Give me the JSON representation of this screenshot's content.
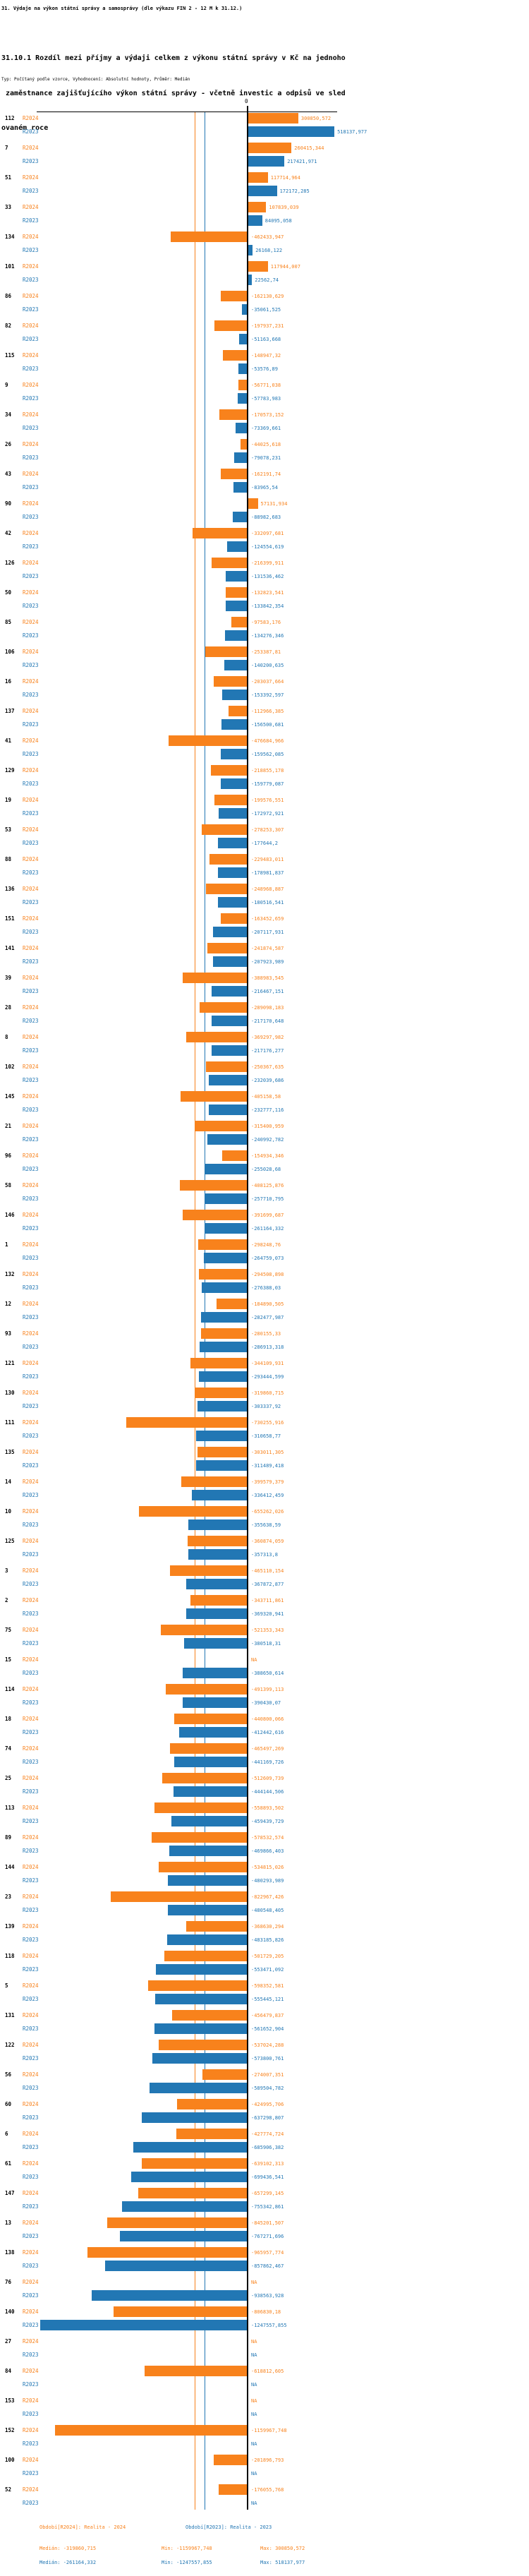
{
  "header": {
    "title": "31. Výdaje na výkon státní správy a samosprávy (dle výkazu FIN 2 - 12 M k 31.12.)",
    "subtitle_lines": [
      "31.10.1 Rozdíl mezi příjmy a výdaji celkem z výkonu státní správy v Kč na jednoho",
      " zaměstnance zajišťujícího výkon státní správy - včetně investic a odpisů ve sled",
      "ovaném roce"
    ],
    "meta": "Typ: Počítaný podle vzorce, Vyhodnocení: Absolutní hodnoty, Průměr: Medián"
  },
  "chart_data": {
    "type": "bar",
    "orientation": "horizontal-diverging",
    "zero_label": "0",
    "na_label": "NA",
    "value_axis": {
      "min": -1270000,
      "max": 540000
    },
    "series": [
      {
        "key": "r2024",
        "label": "R2024",
        "color": "#f8821c",
        "period_text": "Období[R2024]: Realita - 2024",
        "median": "-319860,715",
        "median_text": "Medián: -319860,715",
        "min_text": "Min: -1159967,748",
        "max_text": "Max: 300850,572"
      },
      {
        "key": "r2023",
        "label": "R2023",
        "color": "#2277b4",
        "period_text": "Období[R2023]: Realita - 2023",
        "median": "-261164,332",
        "median_text": "Medián: -261164,332",
        "min_text": "Min: -1247557,855",
        "max_text": "Max: 518137,977"
      }
    ],
    "groups": [
      {
        "id": "112",
        "r2024": "300850,572",
        "r2023": "518137,977"
      },
      {
        "id": "7",
        "r2024": "260415,344",
        "r2023": "217421,971"
      },
      {
        "id": "51",
        "r2024": "117714,964",
        "r2023": "172172,285"
      },
      {
        "id": "33",
        "r2024": "107839,039",
        "r2023": "84095,058"
      },
      {
        "id": "134",
        "r2024": "-462433,947",
        "r2023": "26168,122"
      },
      {
        "id": "101",
        "r2024": "117944,007",
        "r2023": "22562,74"
      },
      {
        "id": "86",
        "r2024": "-162130,629",
        "r2023": "-35061,525"
      },
      {
        "id": "82",
        "r2024": "-197937,231",
        "r2023": "-51163,668"
      },
      {
        "id": "115",
        "r2024": "-148947,32",
        "r2023": "-53576,89"
      },
      {
        "id": "9",
        "r2024": "-56771,038",
        "r2023": "-57783,983"
      },
      {
        "id": "34",
        "r2024": "-170573,152",
        "r2023": "-73369,661"
      },
      {
        "id": "26",
        "r2024": "-44025,618",
        "r2023": "-79078,231"
      },
      {
        "id": "43",
        "r2024": "-162191,74",
        "r2023": "-83965,54"
      },
      {
        "id": "90",
        "r2024": "57131,934",
        "r2023": "-88982,683"
      },
      {
        "id": "42",
        "r2024": "-332097,681",
        "r2023": "-124554,619"
      },
      {
        "id": "126",
        "r2024": "-216399,911",
        "r2023": "-131536,462"
      },
      {
        "id": "50",
        "r2024": "-132823,541",
        "r2023": "-133842,354"
      },
      {
        "id": "85",
        "r2024": "-97583,176",
        "r2023": "-134276,346"
      },
      {
        "id": "106",
        "r2024": "-253387,81",
        "r2023": "-140200,635"
      },
      {
        "id": "16",
        "r2024": "-203037,664",
        "r2023": "-153392,597"
      },
      {
        "id": "137",
        "r2024": "-112966,385",
        "r2023": "-156500,681"
      },
      {
        "id": "41",
        "r2024": "-476684,966",
        "r2023": "-159562,085"
      },
      {
        "id": "129",
        "r2024": "-218855,178",
        "r2023": "-159779,087"
      },
      {
        "id": "19",
        "r2024": "-199576,551",
        "r2023": "-172972,921"
      },
      {
        "id": "53",
        "r2024": "-278253,307",
        "r2023": "-177644,2"
      },
      {
        "id": "88",
        "r2024": "-229483,011",
        "r2023": "-178981,837"
      },
      {
        "id": "136",
        "r2024": "-248968,887",
        "r2023": "-180516,541"
      },
      {
        "id": "151",
        "r2024": "-163452,659",
        "r2023": "-207117,931"
      },
      {
        "id": "141",
        "r2024": "-241874,587",
        "r2023": "-207923,989"
      },
      {
        "id": "39",
        "r2024": "-388983,545",
        "r2023": "-216467,151"
      },
      {
        "id": "28",
        "r2024": "-289098,183",
        "r2023": "-217170,648"
      },
      {
        "id": "8",
        "r2024": "-369297,982",
        "r2023": "-217176,277"
      },
      {
        "id": "102",
        "r2024": "-250367,635",
        "r2023": "-232039,686"
      },
      {
        "id": "145",
        "r2024": "-405158,58",
        "r2023": "-232777,116"
      },
      {
        "id": "21",
        "r2024": "-315400,959",
        "r2023": "-240992,782"
      },
      {
        "id": "96",
        "r2024": "-154934,346",
        "r2023": "-255028,68"
      },
      {
        "id": "58",
        "r2024": "-408125,876",
        "r2023": "-257710,795"
      },
      {
        "id": "146",
        "r2024": "-391699,687",
        "r2023": "-261164,332"
      },
      {
        "id": "1",
        "r2024": "-298248,76",
        "r2023": "-264759,073"
      },
      {
        "id": "132",
        "r2024": "-294508,898",
        "r2023": "-276388,03"
      },
      {
        "id": "12",
        "r2024": "-184890,505",
        "r2023": "-282477,987"
      },
      {
        "id": "93",
        "r2024": "-280155,33",
        "r2023": "-286913,318"
      },
      {
        "id": "121",
        "r2024": "-344109,931",
        "r2023": "-293444,599"
      },
      {
        "id": "130",
        "r2024": "-319860,715",
        "r2023": "-303337,92"
      },
      {
        "id": "111",
        "r2024": "-730255,916",
        "r2023": "-310658,77"
      },
      {
        "id": "135",
        "r2024": "-303011,305",
        "r2023": "-311489,418"
      },
      {
        "id": "14",
        "r2024": "-399579,379",
        "r2023": "-336412,459"
      },
      {
        "id": "10",
        "r2024": "-655262,026",
        "r2023": "-355638,59"
      },
      {
        "id": "125",
        "r2024": "-360874,059",
        "r2023": "-357313,8"
      },
      {
        "id": "3",
        "r2024": "-465110,154",
        "r2023": "-367872,877"
      },
      {
        "id": "2",
        "r2024": "-343711,861",
        "r2023": "-369320,941"
      },
      {
        "id": "75",
        "r2024": "-521353,343",
        "r2023": "-380518,31"
      },
      {
        "id": "15",
        "r2024": "NA",
        "r2023": "-388650,614"
      },
      {
        "id": "114",
        "r2024": "-491399,113",
        "r2023": "-390430,07"
      },
      {
        "id": "18",
        "r2024": "-440800,066",
        "r2023": "-412442,616"
      },
      {
        "id": "74",
        "r2024": "-465497,269",
        "r2023": "-441169,726"
      },
      {
        "id": "25",
        "r2024": "-512609,739",
        "r2023": "-444144,506"
      },
      {
        "id": "113",
        "r2024": "-558893,502",
        "r2023": "-459439,729"
      },
      {
        "id": "89",
        "r2024": "-578532,574",
        "r2023": "-469866,403"
      },
      {
        "id": "144",
        "r2024": "-534815,026",
        "r2023": "-480293,989"
      },
      {
        "id": "23",
        "r2024": "-822967,426",
        "r2023": "-480548,405"
      },
      {
        "id": "139",
        "r2024": "-368630,294",
        "r2023": "-483185,826"
      },
      {
        "id": "118",
        "r2024": "-501729,205",
        "r2023": "-553471,092"
      },
      {
        "id": "5",
        "r2024": "-598352,581",
        "r2023": "-555445,121"
      },
      {
        "id": "131",
        "r2024": "-456479,837",
        "r2023": "-561652,904"
      },
      {
        "id": "122",
        "r2024": "-537024,288",
        "r2023": "-573800,761"
      },
      {
        "id": "56",
        "r2024": "-274007,351",
        "r2023": "-589504,782"
      },
      {
        "id": "60",
        "r2024": "-424995,706",
        "r2023": "-637298,807"
      },
      {
        "id": "6",
        "r2024": "-427774,724",
        "r2023": "-685906,382"
      },
      {
        "id": "61",
        "r2024": "-639102,313",
        "r2023": "-699436,541"
      },
      {
        "id": "147",
        "r2024": "-657299,145",
        "r2023": "-755342,861"
      },
      {
        "id": "13",
        "r2024": "-845201,507",
        "r2023": "-767271,696"
      },
      {
        "id": "138",
        "r2024": "-965957,774",
        "r2023": "-857862,467"
      },
      {
        "id": "76",
        "r2024": "NA",
        "r2023": "-938563,928"
      },
      {
        "id": "140",
        "r2024": "-806830,18",
        "r2023": "-1247557,855"
      },
      {
        "id": "27",
        "r2024": "NA",
        "r2023": "NA"
      },
      {
        "id": "84",
        "r2024": "-618812,605",
        "r2023": "NA"
      },
      {
        "id": "153",
        "r2024": "NA",
        "r2023": "NA"
      },
      {
        "id": "152",
        "r2024": "-1159967,748",
        "r2023": "NA"
      },
      {
        "id": "100",
        "r2024": "-201896,793",
        "r2023": "NA"
      },
      {
        "id": "52",
        "r2024": "-176055,768",
        "r2023": "NA"
      }
    ]
  }
}
